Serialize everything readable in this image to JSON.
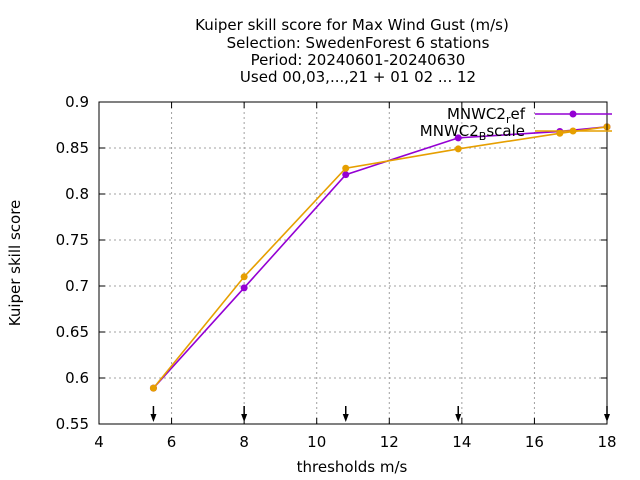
{
  "chart_data": {
    "type": "line",
    "title_lines": [
      "Kuiper skill score  for Max Wind Gust (m/s)",
      "Selection: SwedenForest      6 stations",
      "Period: 20240601-20240630",
      "Used 00,03,...,21 + 01 02 ... 12"
    ],
    "xlabel": "thresholds m/s",
    "ylabel": "Kuiper skill score",
    "xlim": [
      4,
      18
    ],
    "ylim": [
      0.55,
      0.9
    ],
    "xticks": [
      4,
      6,
      8,
      10,
      12,
      14,
      16,
      18
    ],
    "yticks": [
      0.55,
      0.6,
      0.65,
      0.7,
      0.75,
      0.8,
      0.85,
      0.9
    ],
    "xtick_labels": [
      "4",
      "6",
      "8",
      "10",
      "12",
      "14",
      "16",
      "18"
    ],
    "ytick_labels": [
      "0.55",
      "0.6",
      "0.65",
      "0.7",
      "0.75",
      "0.8",
      "0.85",
      "0.9"
    ],
    "grid": true,
    "legend_position": "top-right",
    "threshold_arrows": [
      5.5,
      8,
      10.8,
      13.9,
      18
    ],
    "series": [
      {
        "name": "MNWC2_ref",
        "legend_base": "MNWC2",
        "legend_sub": "r",
        "legend_rest": "ef",
        "color": "#9400d3",
        "x": [
          5.5,
          8,
          10.8,
          13.9,
          16.7,
          18
        ],
        "y": [
          0.589,
          0.698,
          0.821,
          0.861,
          0.868,
          0.873
        ]
      },
      {
        "name": "MNWC2_Bscale",
        "legend_base": "MNWC2",
        "legend_sub": "B",
        "legend_rest": "scale",
        "color": "#e69f00",
        "x": [
          5.5,
          8,
          10.8,
          13.9,
          16.7,
          18
        ],
        "y": [
          0.589,
          0.71,
          0.828,
          0.849,
          0.866,
          0.873
        ]
      }
    ]
  }
}
